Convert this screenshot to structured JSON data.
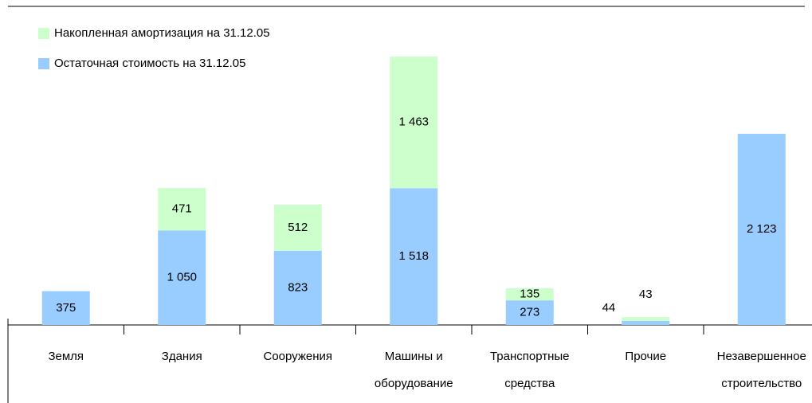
{
  "chart_data": {
    "type": "stacked_bar",
    "categories": [
      "Земля",
      "Здания",
      "Сооружения",
      "Машины и оборудование",
      "Транспортные средства",
      "Прочие",
      "Незавершенное строительство"
    ],
    "series": [
      {
        "name": "Остаточная стоимость на 31.12.05",
        "color": "#99ccff",
        "values": [
          375,
          1050,
          823,
          1518,
          273,
          44,
          2123
        ],
        "value_labels": [
          "375",
          "1 050",
          "823",
          "1 518",
          "273",
          "44",
          "2 123"
        ]
      },
      {
        "name": "Накопленная амортизация на 31.12.05",
        "color": "#ccffcc",
        "values": [
          null,
          471,
          512,
          1463,
          135,
          43,
          null
        ],
        "value_labels": [
          null,
          "471",
          "512",
          "1 463",
          "135",
          "43",
          null
        ]
      }
    ]
  }
}
